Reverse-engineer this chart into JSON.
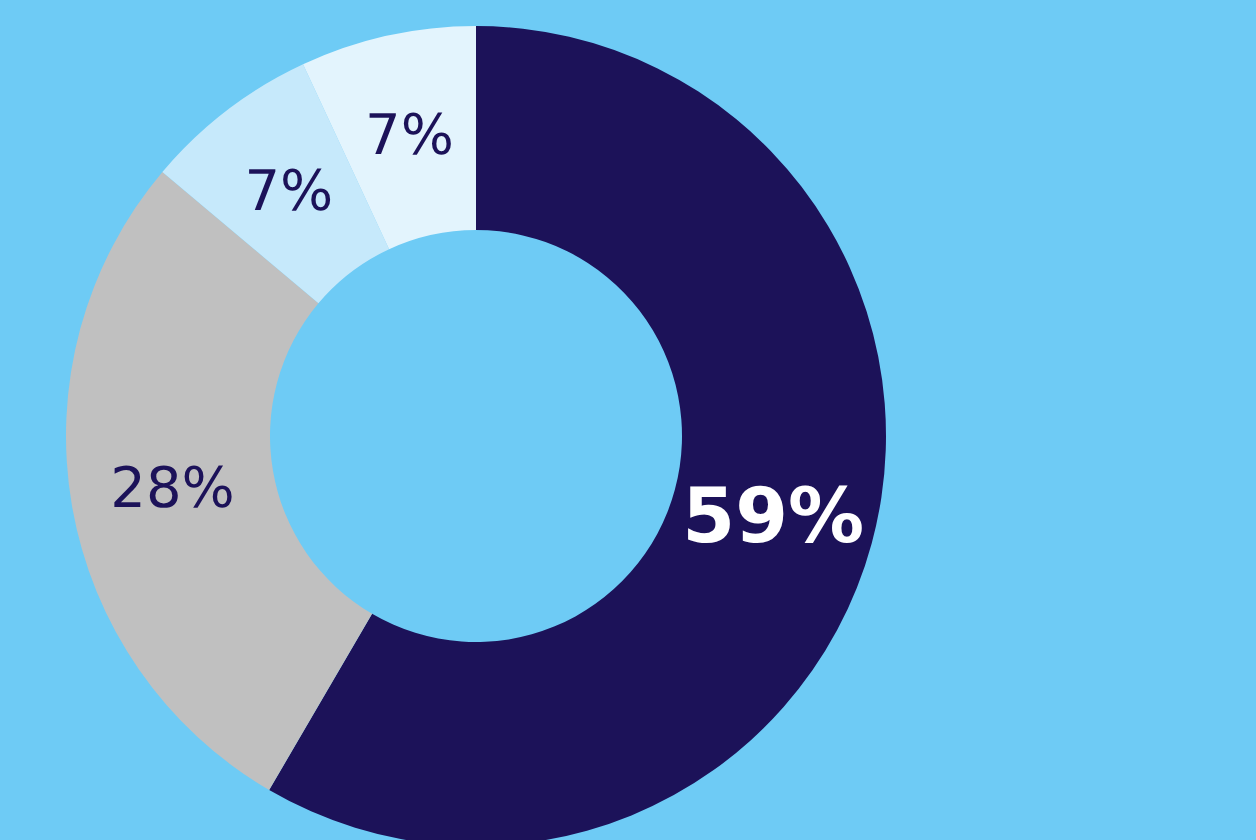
{
  "chart_data": {
    "type": "donut",
    "categories": [
      null,
      null,
      null,
      null
    ],
    "values": [
      59,
      28,
      7,
      7
    ],
    "colors": [
      "#1c1259",
      "#c0c0c0",
      "#c6e9fb",
      "#e3f4fd"
    ],
    "value_labels": [
      "59%",
      "28%",
      "7%",
      "7%"
    ]
  }
}
